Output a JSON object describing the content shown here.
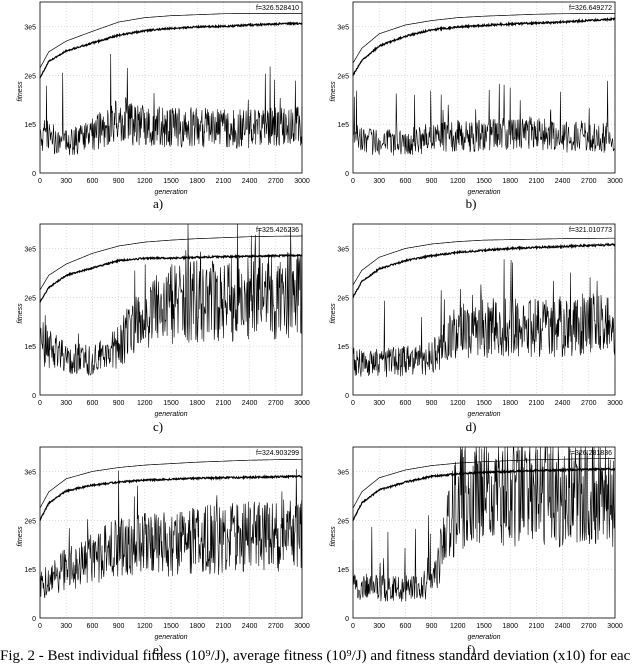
{
  "chart_data": [
    {
      "type": "line",
      "panel": "a)",
      "ylabel": "fitness",
      "xlabel": "generation",
      "xlim": [
        0,
        3000
      ],
      "ylim": [
        0,
        350000
      ],
      "xticks": [
        "0",
        "300",
        "600",
        "900",
        "1200",
        "1500",
        "1800",
        "2100",
        "2400",
        "2700",
        "3000"
      ],
      "yticks": [
        "0",
        "1e5",
        "2e5",
        "3e5"
      ],
      "annotation": "f=326.528410",
      "grid": true,
      "best": {
        "x": [
          0,
          100,
          300,
          600,
          900,
          1200,
          1500,
          1800,
          2100,
          2400,
          2700,
          3000
        ],
        "y": [
          215000,
          248000,
          270000,
          290000,
          309000,
          318000,
          322000,
          324000,
          326000,
          326500,
          326500,
          326500
        ]
      },
      "average": {
        "x": [
          0,
          100,
          300,
          600,
          900,
          1200,
          1500,
          1800,
          2100,
          2400,
          2700,
          3000
        ],
        "y": [
          195000,
          228000,
          250000,
          266000,
          282000,
          291000,
          296000,
          299000,
          300000,
          303000,
          305000,
          306000
        ]
      },
      "deviation": {
        "x": [
          0,
          100,
          300,
          600,
          900,
          1200,
          1500,
          1800,
          2100,
          2400,
          2700,
          3000
        ],
        "y": [
          80000,
          75000,
          60000,
          80000,
          110000,
          95000,
          95000,
          95000,
          90000,
          90000,
          95000,
          95000
        ]
      }
    },
    {
      "type": "line",
      "panel": "b)",
      "ylabel": "fitness",
      "xlabel": "generation",
      "xlim": [
        0,
        3000
      ],
      "ylim": [
        0,
        350000
      ],
      "xticks": [
        "0",
        "300",
        "600",
        "900",
        "1200",
        "1500",
        "1800",
        "2100",
        "2400",
        "2700",
        "3000"
      ],
      "yticks": [
        "0",
        "1e5",
        "2e5",
        "3e5"
      ],
      "annotation": "f=326.649272",
      "grid": true,
      "best": {
        "x": [
          0,
          100,
          300,
          600,
          900,
          1200,
          1500,
          1800,
          2100,
          2400,
          2700,
          3000
        ],
        "y": [
          225000,
          255000,
          285000,
          303000,
          312000,
          318000,
          321000,
          323000,
          325000,
          326000,
          326500,
          326600
        ]
      },
      "average": {
        "x": [
          0,
          100,
          300,
          600,
          900,
          1200,
          1500,
          1800,
          2100,
          2400,
          2700,
          3000
        ],
        "y": [
          200000,
          230000,
          260000,
          280000,
          293000,
          299000,
          302000,
          305000,
          307000,
          309000,
          312000,
          315000
        ]
      },
      "deviation": {
        "x": [
          0,
          100,
          300,
          600,
          900,
          1200,
          1500,
          1800,
          2100,
          2400,
          2700,
          3000
        ],
        "y": [
          70000,
          65000,
          60000,
          65000,
          70000,
          75000,
          75000,
          80000,
          80000,
          75000,
          75000,
          70000
        ]
      }
    },
    {
      "type": "line",
      "panel": "c)",
      "ylabel": "fitness",
      "xlabel": "generation",
      "xlim": [
        0,
        3000
      ],
      "ylim": [
        0,
        350000
      ],
      "xticks": [
        "0",
        "300",
        "600",
        "900",
        "1200",
        "1500",
        "1800",
        "2100",
        "2400",
        "2700",
        "3000"
      ],
      "yticks": [
        "0",
        "1e5",
        "2e5",
        "3e5"
      ],
      "annotation": "f=325.426236",
      "grid": true,
      "best": {
        "x": [
          0,
          100,
          300,
          600,
          900,
          1200,
          1500,
          1800,
          2100,
          2400,
          2700,
          3000
        ],
        "y": [
          215000,
          245000,
          268000,
          290000,
          305000,
          313000,
          317000,
          320000,
          322000,
          324000,
          325000,
          325400
        ]
      },
      "average": {
        "x": [
          0,
          100,
          300,
          600,
          900,
          1200,
          1500,
          1800,
          2100,
          2400,
          2700,
          3000
        ],
        "y": [
          190000,
          220000,
          245000,
          260000,
          275000,
          280000,
          280000,
          282000,
          283000,
          284000,
          285000,
          286000
        ]
      },
      "deviation": {
        "x": [
          0,
          100,
          300,
          600,
          900,
          1200,
          1500,
          1800,
          2100,
          2400,
          2700,
          3000
        ],
        "y": [
          110000,
          95000,
          75000,
          70000,
          100000,
          170000,
          185000,
          190000,
          195000,
          200000,
          200000,
          205000
        ]
      }
    },
    {
      "type": "line",
      "panel": "d)",
      "ylabel": "fitness",
      "xlabel": "generation",
      "xlim": [
        0,
        3000
      ],
      "ylim": [
        0,
        350000
      ],
      "xticks": [
        "0",
        "300",
        "600",
        "900",
        "1200",
        "1500",
        "1800",
        "2100",
        "2400",
        "2700",
        "3000"
      ],
      "yticks": [
        "0",
        "1e5",
        "2e5",
        "3e5"
      ],
      "annotation": "f=321.010773",
      "grid": true,
      "best": {
        "x": [
          0,
          100,
          300,
          600,
          900,
          1200,
          1500,
          1800,
          2100,
          2400,
          2700,
          3000
        ],
        "y": [
          225000,
          255000,
          282000,
          300000,
          309000,
          314000,
          317000,
          318000,
          319000,
          320000,
          320500,
          321000
        ]
      },
      "average": {
        "x": [
          0,
          100,
          300,
          600,
          900,
          1200,
          1500,
          1800,
          2100,
          2400,
          2700,
          3000
        ],
        "y": [
          200000,
          232000,
          258000,
          275000,
          285000,
          292000,
          296000,
          300000,
          302000,
          304000,
          306000,
          308000
        ]
      },
      "deviation": {
        "x": [
          0,
          100,
          300,
          600,
          900,
          1200,
          1500,
          1800,
          2100,
          2400,
          2700,
          3000
        ],
        "y": [
          70000,
          65000,
          65000,
          70000,
          75000,
          130000,
          135000,
          140000,
          140000,
          140000,
          145000,
          145000
        ]
      }
    },
    {
      "type": "line",
      "panel": "e)",
      "ylabel": "fitness",
      "xlabel": "generation",
      "xlim": [
        0,
        3000
      ],
      "ylim": [
        0,
        350000
      ],
      "xticks": [
        "0",
        "300",
        "600",
        "900",
        "1200",
        "1500",
        "1800",
        "2100",
        "2400",
        "2700",
        "3000"
      ],
      "yticks": [
        "0",
        "1e5",
        "2e5",
        "3e5"
      ],
      "annotation": "f=324.903299",
      "grid": true,
      "best": {
        "x": [
          0,
          100,
          300,
          600,
          900,
          1200,
          1500,
          1800,
          2100,
          2400,
          2700,
          3000
        ],
        "y": [
          225000,
          258000,
          285000,
          300000,
          308000,
          313000,
          316000,
          319000,
          321000,
          323000,
          324000,
          324900
        ]
      },
      "average": {
        "x": [
          0,
          100,
          300,
          600,
          900,
          1200,
          1500,
          1800,
          2100,
          2400,
          2700,
          3000
        ],
        "y": [
          200000,
          235000,
          260000,
          272000,
          278000,
          282000,
          284000,
          286000,
          287000,
          288000,
          289000,
          290000
        ]
      },
      "deviation": {
        "x": [
          0,
          100,
          300,
          600,
          900,
          1200,
          1500,
          1800,
          2100,
          2400,
          2700,
          3000
        ],
        "y": [
          70000,
          75000,
          100000,
          125000,
          145000,
          150000,
          155000,
          160000,
          160000,
          165000,
          170000,
          170000
        ]
      }
    },
    {
      "type": "line",
      "panel": "f)",
      "ylabel": "fitness",
      "xlabel": "generation",
      "xlim": [
        0,
        3000
      ],
      "ylim": [
        0,
        350000
      ],
      "xticks": [
        "0",
        "300",
        "600",
        "900",
        "1200",
        "1500",
        "1800",
        "2100",
        "2400",
        "2700",
        "3000"
      ],
      "yticks": [
        "0",
        "1e5",
        "2e5",
        "3e5"
      ],
      "annotation": "f=326.281836",
      "grid": true,
      "best": {
        "x": [
          0,
          100,
          300,
          600,
          900,
          1200,
          1500,
          1800,
          2100,
          2400,
          2700,
          3000
        ],
        "y": [
          225000,
          258000,
          287000,
          303000,
          312000,
          317000,
          320000,
          322000,
          324000,
          325000,
          326000,
          326300
        ]
      },
      "average": {
        "x": [
          0,
          100,
          300,
          600,
          900,
          1200,
          1500,
          1800,
          2100,
          2400,
          2700,
          3000
        ],
        "y": [
          200000,
          235000,
          262000,
          278000,
          290000,
          295000,
          298000,
          300000,
          302000,
          303000,
          304000,
          305000
        ]
      },
      "deviation": {
        "x": [
          0,
          100,
          300,
          600,
          900,
          1200,
          1500,
          1800,
          2100,
          2400,
          2700,
          3000
        ],
        "y": [
          70000,
          65000,
          60000,
          60000,
          70000,
          250000,
          255000,
          260000,
          260000,
          255000,
          255000,
          250000
        ]
      }
    }
  ],
  "figure": {
    "caption": "Fig. 2 - Best individual fitness (10⁹/J), average fitness (10⁹/J) and fitness standard deviation (x10) for eac"
  }
}
